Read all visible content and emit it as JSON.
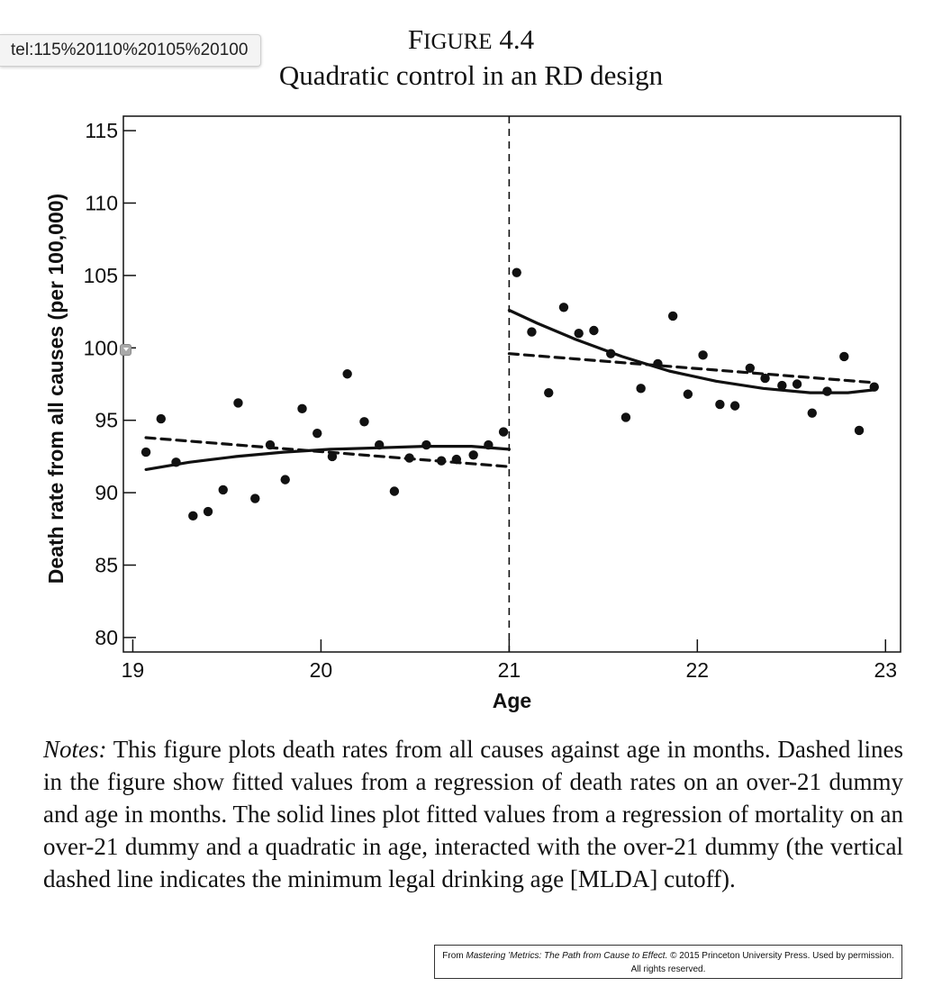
{
  "tooltip": {
    "text": "tel:115%20110%20105%20100"
  },
  "figure": {
    "label_initial": "F",
    "label_rest": "IGURE",
    "label_number": "4.4",
    "subtitle": "Quadratic control in an RD design"
  },
  "chart_data": {
    "type": "scatter",
    "xlabel": "Age",
    "ylabel": "Death rate from all causes (per 100,000)",
    "xlim": [
      18.95,
      23.08
    ],
    "ylim": [
      79,
      116
    ],
    "x_ticks": [
      19,
      20,
      21,
      22,
      23
    ],
    "y_ticks": [
      80,
      85,
      90,
      95,
      100,
      105,
      110,
      115
    ],
    "cutoff": 21,
    "grid": false,
    "legend": "none",
    "points": [
      [
        19.07,
        92.8
      ],
      [
        19.15,
        95.1
      ],
      [
        19.23,
        92.1
      ],
      [
        19.32,
        88.4
      ],
      [
        19.4,
        88.7
      ],
      [
        19.48,
        90.2
      ],
      [
        19.56,
        96.2
      ],
      [
        19.65,
        89.6
      ],
      [
        19.73,
        93.3
      ],
      [
        19.81,
        90.9
      ],
      [
        19.9,
        95.8
      ],
      [
        19.98,
        94.1
      ],
      [
        20.06,
        92.5
      ],
      [
        20.14,
        98.2
      ],
      [
        20.23,
        94.9
      ],
      [
        20.31,
        93.3
      ],
      [
        20.39,
        90.1
      ],
      [
        20.47,
        92.4
      ],
      [
        20.56,
        93.3
      ],
      [
        20.64,
        92.2
      ],
      [
        20.72,
        92.3
      ],
      [
        20.81,
        92.6
      ],
      [
        20.89,
        93.3
      ],
      [
        20.97,
        94.2
      ],
      [
        21.04,
        105.2
      ],
      [
        21.12,
        101.1
      ],
      [
        21.21,
        96.9
      ],
      [
        21.29,
        102.8
      ],
      [
        21.37,
        101.0
      ],
      [
        21.45,
        101.2
      ],
      [
        21.54,
        99.6
      ],
      [
        21.62,
        95.2
      ],
      [
        21.7,
        97.2
      ],
      [
        21.79,
        98.9
      ],
      [
        21.87,
        102.2
      ],
      [
        21.95,
        96.8
      ],
      [
        22.03,
        99.5
      ],
      [
        22.12,
        96.1
      ],
      [
        22.2,
        96.0
      ],
      [
        22.28,
        98.6
      ],
      [
        22.36,
        97.9
      ],
      [
        22.45,
        97.4
      ],
      [
        22.53,
        97.5
      ],
      [
        22.61,
        95.5
      ],
      [
        22.69,
        97.0
      ],
      [
        22.78,
        99.4
      ],
      [
        22.86,
        94.3
      ],
      [
        22.94,
        97.3
      ]
    ],
    "series": [
      {
        "style": "dashed",
        "x": [
          19.07,
          21.0
        ],
        "y": [
          93.8,
          91.8
        ]
      },
      {
        "style": "dashed",
        "x": [
          21.0,
          22.94
        ],
        "y": [
          99.6,
          97.6
        ]
      },
      {
        "style": "solid",
        "x": [
          19.07,
          19.3,
          19.55,
          19.8,
          20.05,
          20.3,
          20.55,
          20.8,
          21.0
        ],
        "y": [
          91.6,
          92.1,
          92.5,
          92.8,
          93.0,
          93.1,
          93.2,
          93.2,
          93.0
        ]
      },
      {
        "style": "solid",
        "x": [
          21.0,
          21.15,
          21.35,
          21.6,
          21.85,
          22.1,
          22.35,
          22.6,
          22.8,
          22.94
        ],
        "y": [
          102.6,
          101.7,
          100.6,
          99.4,
          98.4,
          97.7,
          97.2,
          96.9,
          96.9,
          97.1
        ]
      }
    ]
  },
  "notes": {
    "lead": "Notes:",
    "text": "This figure plots death rates from all causes against age in months. Dashed lines in the figure show fitted values from a regression of death rates on an over-21 dummy and age in months. The solid lines plot fitted values from a regression of mortality on an over-21 dummy and a quadratic in age, interacted with the over-21 dummy (the vertical dashed line indicates the minimum legal drinking age [MLDA] cutoff)."
  },
  "credit": {
    "prefix": "From",
    "book": "Mastering ’Metrics: The Path from Cause to Effect.",
    "suffix": "© 2015 Princeton University Press. Used by permission.",
    "line2": "All rights reserved."
  }
}
